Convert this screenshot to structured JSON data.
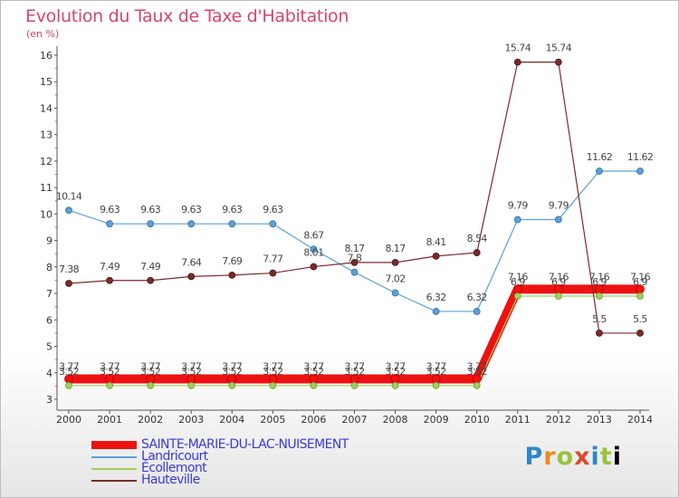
{
  "title": "Evolution du Taux de Taxe d'Habitation",
  "subtitle": "(en %)",
  "brand": "Proxiti",
  "chart_data": {
    "type": "line",
    "title": "Evolution du Taux de Taxe d'Habitation",
    "ylabel": "(en %)",
    "xlabel": "",
    "x": [
      "2000",
      "2001",
      "2002",
      "2003",
      "2004",
      "2005",
      "2006",
      "2007",
      "2008",
      "2009",
      "2010",
      "2011",
      "2012",
      "2013",
      "2014"
    ],
    "yticks": [
      "3",
      "4",
      "5",
      "6",
      "7",
      "8",
      "9",
      "10",
      "11",
      "12",
      "13",
      "14",
      "15",
      "16"
    ],
    "ylim": [
      3,
      16
    ],
    "grid": false,
    "legend_position": "bottom-left",
    "series": [
      {
        "name": "SAINTE-MARIE-DU-LAC-NUISEMENT",
        "color": "#ee1111",
        "values": [
          3.77,
          3.77,
          3.77,
          3.77,
          3.77,
          3.77,
          3.77,
          3.77,
          3.77,
          3.77,
          3.77,
          7.16,
          7.16,
          7.16,
          7.16
        ],
        "labels": [
          "3.77",
          "3.77",
          "3.77",
          "3.77",
          "3.77",
          "3.77",
          "3.77",
          "3.77",
          "3.77",
          "3.77",
          "3.77",
          "7.16",
          "7.16",
          "7.16",
          "7.16"
        ]
      },
      {
        "name": "Landricourt",
        "color": "#5ba0d8",
        "values": [
          10.14,
          9.63,
          9.63,
          9.63,
          9.63,
          9.63,
          8.67,
          7.8,
          7.02,
          6.32,
          6.32,
          9.79,
          9.79,
          11.62,
          11.62
        ],
        "labels": [
          "10.14",
          "9.63",
          "9.63",
          "9.63",
          "9.63",
          "9.63",
          "8.67",
          "7.8",
          "7.02",
          "6.32",
          "6.32",
          "9.79",
          "9.79",
          "11.62",
          "11.62"
        ]
      },
      {
        "name": "Écollemont",
        "color": "#9ed05a",
        "values": [
          3.52,
          3.52,
          3.52,
          3.52,
          3.52,
          3.52,
          3.52,
          3.52,
          3.52,
          3.52,
          3.52,
          6.9,
          6.9,
          6.9,
          6.9
        ],
        "labels": [
          "3.52",
          "3.52",
          "3.52",
          "3.52",
          "3.52",
          "3.52",
          "3.52",
          "3.52",
          "3.52",
          "3.52",
          "3.52",
          "6.9",
          "6.9",
          "6.9",
          "6.9"
        ]
      },
      {
        "name": "Hauteville",
        "color": "#7a2a2a",
        "values": [
          7.38,
          7.49,
          7.49,
          7.64,
          7.69,
          7.77,
          8.01,
          8.17,
          8.17,
          8.41,
          8.54,
          15.74,
          15.74,
          5.5,
          5.5
        ],
        "labels": [
          "7.38",
          "7.49",
          "7.49",
          "7.64",
          "7.69",
          "7.77",
          "8.01",
          "8.17",
          "8.17",
          "8.41",
          "8.54",
          "15.74",
          "15.74",
          "5.5",
          "5.5"
        ]
      }
    ]
  }
}
